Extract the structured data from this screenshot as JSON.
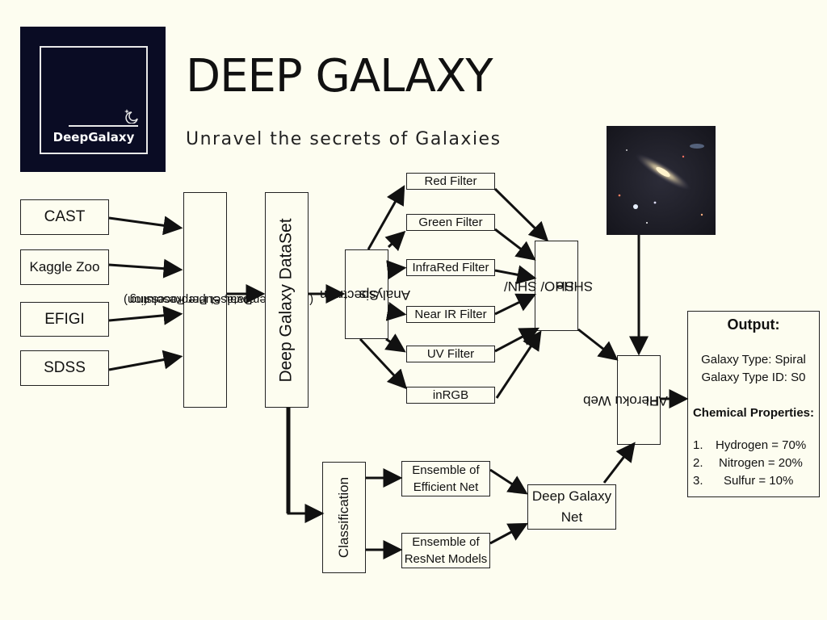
{
  "title": "DEEP GALAXY",
  "subtitle": "Unravel the secrets of Galaxies",
  "logo": {
    "text": "DeepGalaxy",
    "bg_color": "#0a0c24",
    "icon": "moon-sparkle-icon"
  },
  "sources": [
    "CAST",
    "Kaggle Zoo",
    "EFIGI",
    "SDSS"
  ],
  "preprocessing": {
    "line1": "Dataset Preprocessing",
    "line2": "(Noise Removal, Super Resolution)"
  },
  "dataset": "Deep Galaxy DataSet",
  "spectrum": {
    "line1": "Spectrum",
    "line2": "Analysis"
  },
  "filters": [
    "Red Filter",
    "Green Filter",
    "InfraRed Filter",
    "Near IR Filter",
    "UV Filter",
    "inRGB"
  ],
  "sho": {
    "line1": "SHO/ SHN/",
    "line2": "SHHe"
  },
  "classification": "Classification",
  "ensembles": [
    {
      "line1": "Ensemble of",
      "line2": "Efficient Net"
    },
    {
      "line1": "Ensemble of",
      "line2": "ResNet Models"
    }
  ],
  "net": {
    "line1": "Deep Galaxy",
    "line2": "Net"
  },
  "api": {
    "line1": "Heroku Web",
    "line2": "API"
  },
  "output": {
    "heading": "Output:",
    "galaxy_type": "Galaxy Type: Spiral",
    "galaxy_type_id": "Galaxy Type ID: S0",
    "chem_heading": "Chemical Properties:",
    "items": [
      {
        "num": "1.",
        "text": "Hydrogen = 70%"
      },
      {
        "num": "2.",
        "text": "Nitrogen = 20%"
      },
      {
        "num": "3.",
        "text": "Sulfur = 10%"
      }
    ]
  },
  "colors": {
    "background": "#fdfdf0",
    "stroke": "#111111"
  }
}
